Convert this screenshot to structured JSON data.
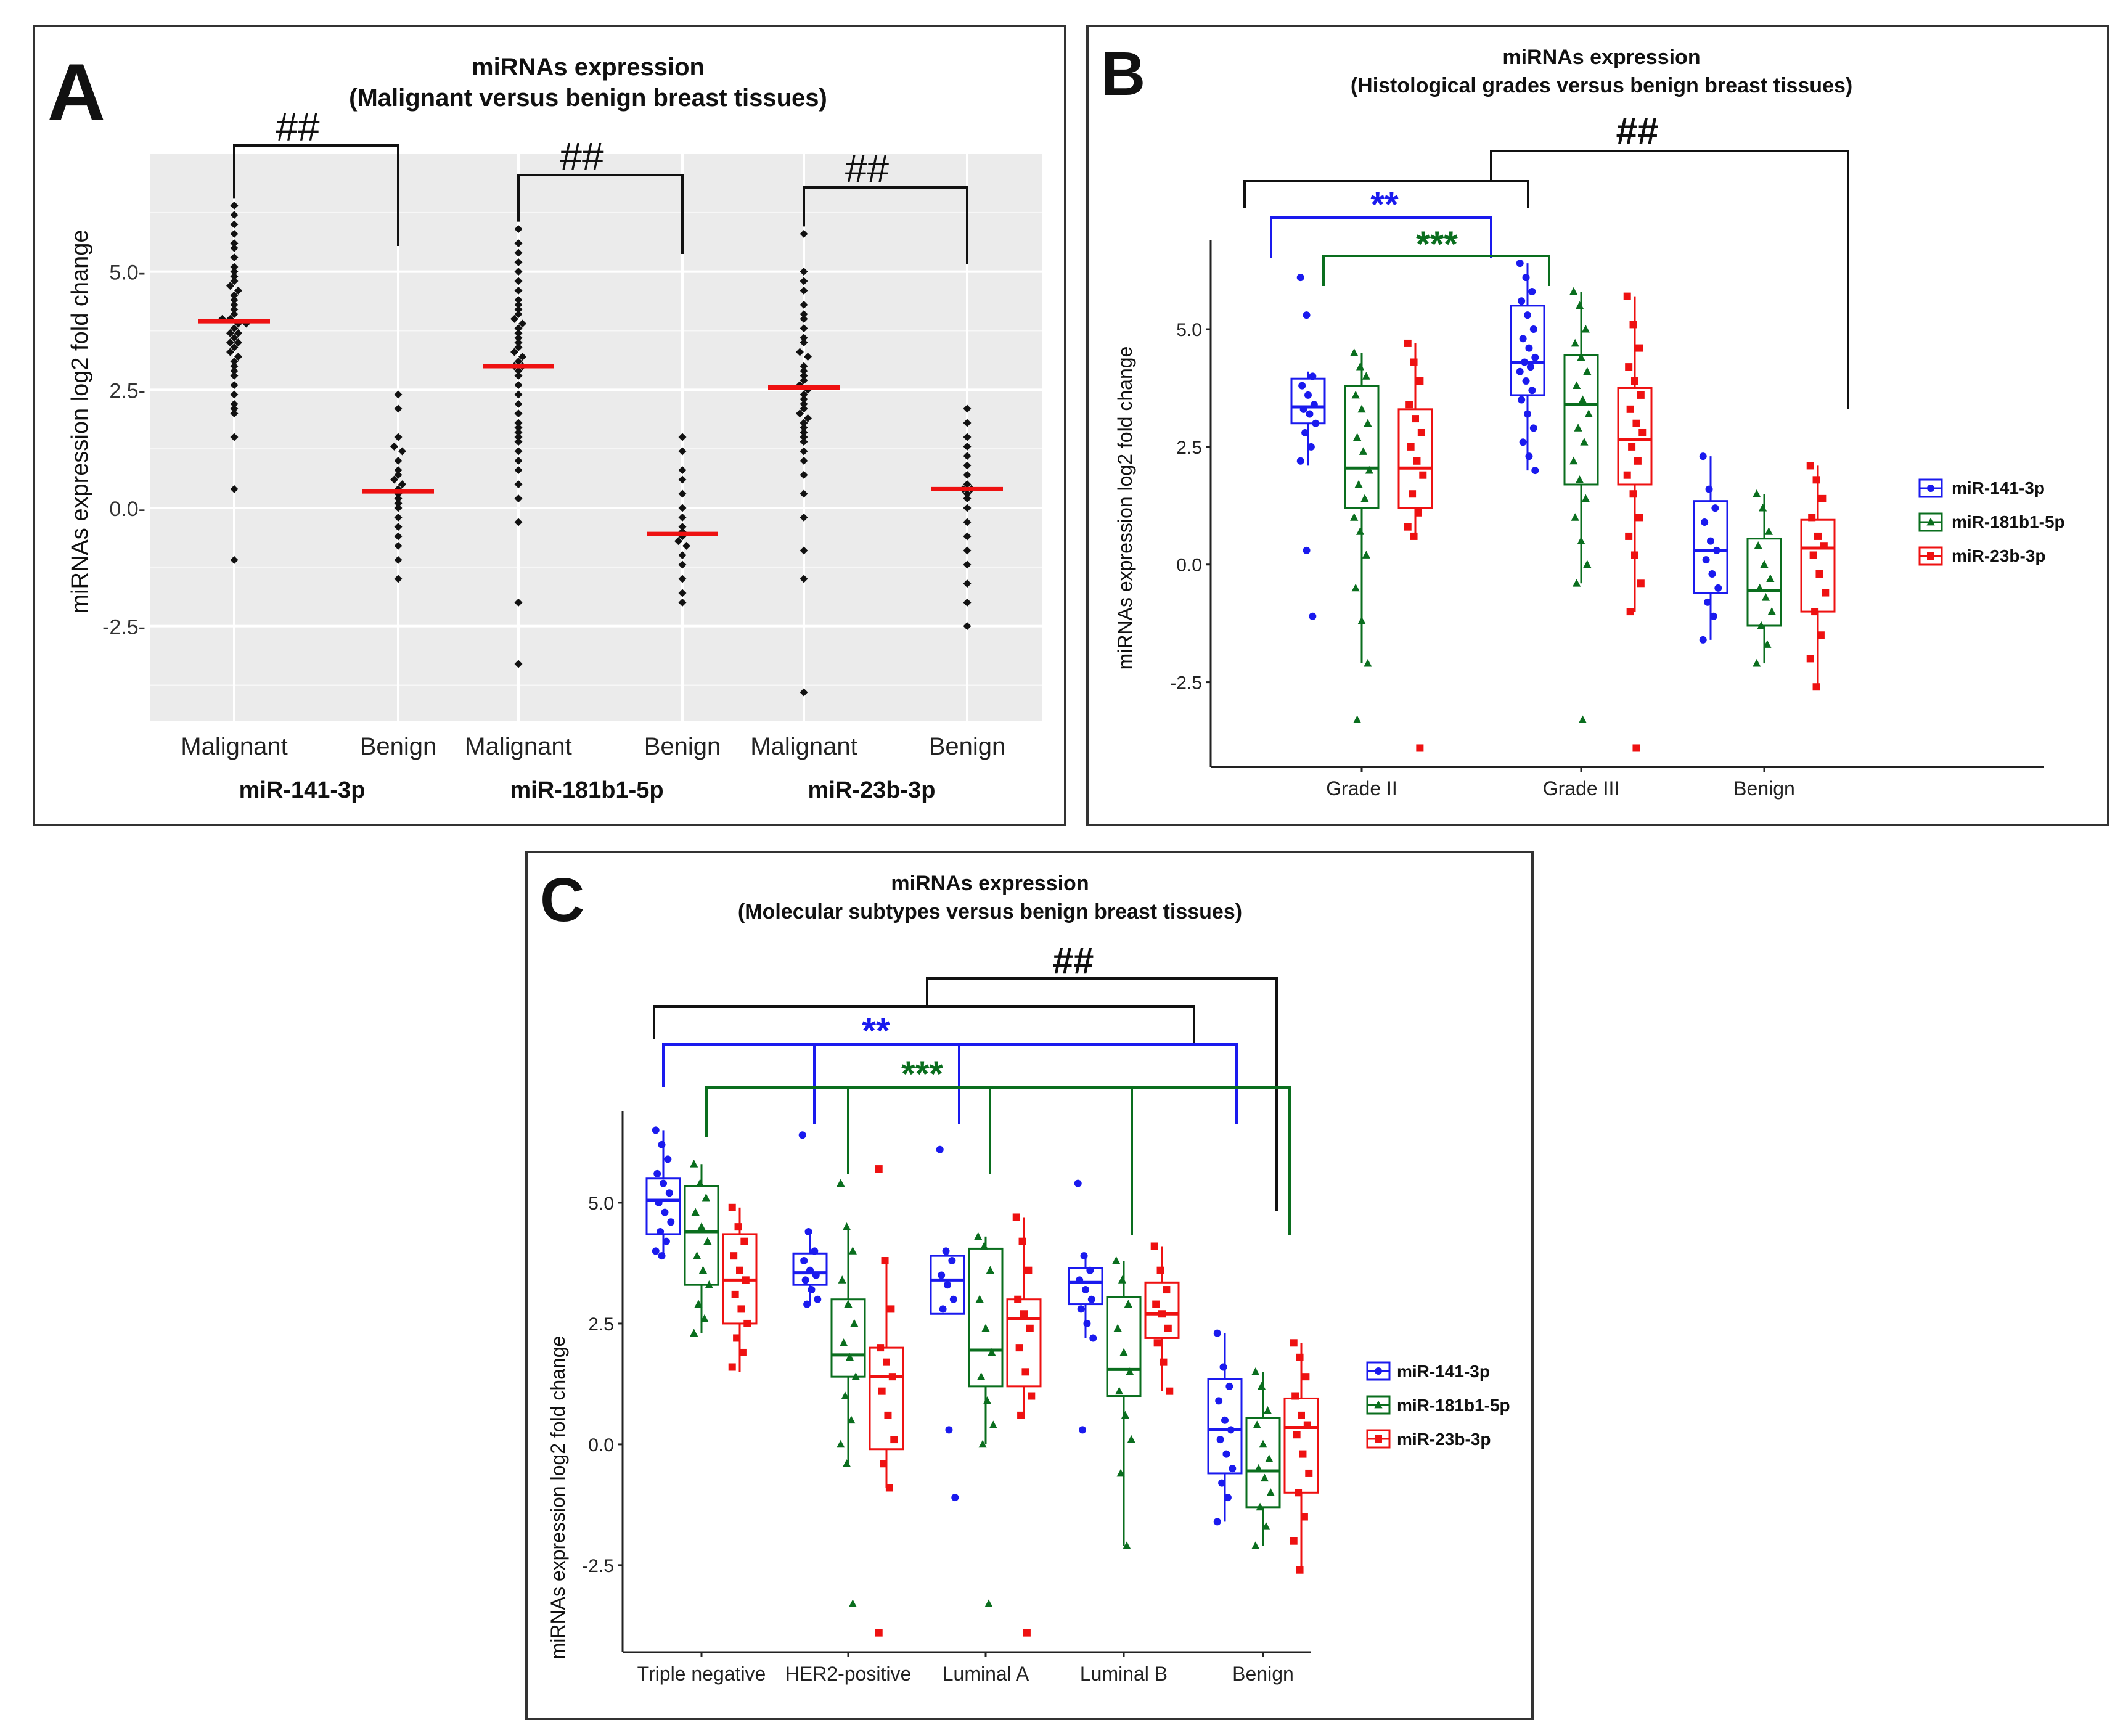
{
  "colors": {
    "blue": "#1a1aee",
    "green": "#0a6e1e",
    "red": "#ee1111",
    "black": "#111111",
    "median_red": "#ee1111",
    "panel_bg": "#ebebeb"
  },
  "chart_data": [
    {
      "type": "scatter",
      "panel_letter": "A",
      "title": "miRNAs expression",
      "subtitle": "(Malignant versus benign breast tissues)",
      "xlabel": "",
      "ylabel": "miRNAs expression log2 fold change",
      "ylim": [
        -4.5,
        7.5
      ],
      "yticks": [
        5.0,
        2.5,
        0.0,
        -2.5
      ],
      "ytick_labels": [
        "5.0-",
        "2.5-",
        "0.0-",
        "-2.5-"
      ],
      "categories": [
        "Malignant",
        "Benign",
        "Malignant",
        "Benign",
        "Malignant",
        "Benign"
      ],
      "groups": [
        "miR-141-3p",
        "miR-181b1-5p",
        "miR-23b-3p"
      ],
      "medians": [
        3.95,
        0.35,
        3.0,
        -0.55,
        2.55,
        0.4
      ],
      "brackets": [
        {
          "from": 0,
          "to": 1,
          "label": "##"
        },
        {
          "from": 2,
          "to": 3,
          "label": "##"
        },
        {
          "from": 4,
          "to": 5,
          "label": "##"
        }
      ],
      "series": [
        {
          "name": "Malignant miR-141-3p",
          "values": [
            6.4,
            6.2,
            6.0,
            5.8,
            5.6,
            5.5,
            5.3,
            5.1,
            5.0,
            4.9,
            4.8,
            4.7,
            4.6,
            4.5,
            4.4,
            4.3,
            4.2,
            4.1,
            4.0,
            4.0,
            3.9,
            3.9,
            3.8,
            3.7,
            3.7,
            3.6,
            3.5,
            3.5,
            3.4,
            3.3,
            3.2,
            3.1,
            3.0,
            2.9,
            2.8,
            2.6,
            2.4,
            2.2,
            2.1,
            2.0,
            1.5,
            0.4,
            -1.1
          ]
        },
        {
          "name": "Benign miR-141-3p",
          "values": [
            2.4,
            2.1,
            1.5,
            1.3,
            1.2,
            1.0,
            0.8,
            0.7,
            0.6,
            0.5,
            0.4,
            0.3,
            0.2,
            0.1,
            0.0,
            -0.2,
            -0.4,
            -0.6,
            -0.8,
            -1.1,
            -1.5
          ]
        },
        {
          "name": "Malignant miR-181b1-5p",
          "values": [
            5.9,
            5.6,
            5.4,
            5.2,
            5.0,
            4.8,
            4.6,
            4.4,
            4.3,
            4.2,
            4.1,
            4.0,
            3.9,
            3.8,
            3.7,
            3.6,
            3.5,
            3.4,
            3.3,
            3.2,
            3.1,
            3.0,
            3.0,
            2.9,
            2.8,
            2.6,
            2.4,
            2.2,
            2.0,
            1.8,
            1.7,
            1.6,
            1.5,
            1.4,
            1.2,
            1.0,
            0.8,
            0.5,
            0.2,
            -0.3,
            -2.0,
            -3.3
          ]
        },
        {
          "name": "Benign miR-181b1-5p",
          "values": [
            1.5,
            1.2,
            0.8,
            0.6,
            0.3,
            0.0,
            -0.2,
            -0.4,
            -0.5,
            -0.6,
            -0.7,
            -0.8,
            -1.0,
            -1.2,
            -1.5,
            -1.8,
            -2.0
          ]
        },
        {
          "name": "Malignant miR-23b-3p",
          "values": [
            5.8,
            5.0,
            4.8,
            4.6,
            4.3,
            4.1,
            4.0,
            3.8,
            3.6,
            3.5,
            3.3,
            3.2,
            3.0,
            2.9,
            2.8,
            2.7,
            2.6,
            2.5,
            2.4,
            2.3,
            2.2,
            2.1,
            2.0,
            1.9,
            1.8,
            1.7,
            1.6,
            1.5,
            1.4,
            1.2,
            1.0,
            0.7,
            0.3,
            -0.2,
            -0.9,
            -1.5,
            -3.9
          ]
        },
        {
          "name": "Benign miR-23b-3p",
          "values": [
            2.1,
            1.8,
            1.5,
            1.3,
            1.1,
            0.9,
            0.7,
            0.5,
            0.4,
            0.4,
            0.3,
            0.2,
            0.0,
            -0.3,
            -0.6,
            -0.9,
            -1.2,
            -1.6,
            -2.0,
            -2.5
          ]
        }
      ]
    },
    {
      "type": "box",
      "panel_letter": "B",
      "title": "miRNAs expression",
      "subtitle": "(Histological grades versus benign breast tissues)",
      "ylabel": "miRNAs expression log2 fold change",
      "ylim": [
        -4.3,
        6.9
      ],
      "yticks": [
        5.0,
        2.5,
        0.0,
        -2.5
      ],
      "ytick_labels": [
        "5.0",
        "2.5",
        "0.0",
        "-2.5"
      ],
      "categories": [
        "Grade II",
        "Grade III",
        "Benign"
      ],
      "legend": [
        {
          "name": "miR-141-3p",
          "color": "#1a1aee"
        },
        {
          "name": "miR-181b1-5p",
          "color": "#0a6e1e"
        },
        {
          "name": "miR-23b-3p",
          "color": "#ee1111"
        }
      ],
      "brackets": [
        {
          "label": "##",
          "color": "#111111"
        },
        {
          "label": "**",
          "color": "#1a1aee"
        },
        {
          "label": "***",
          "color": "#0a6e1e"
        }
      ],
      "boxes": [
        {
          "category": "Grade II",
          "series": "miR-141-3p",
          "q1": 3.0,
          "median": 3.35,
          "q3": 3.95,
          "min": 2.1,
          "max": 4.1,
          "points": [
            6.1,
            5.3,
            4.0,
            3.8,
            3.6,
            3.4,
            3.3,
            3.2,
            3.0,
            2.8,
            2.5,
            2.2,
            0.3,
            -1.1
          ]
        },
        {
          "category": "Grade II",
          "series": "miR-181b1-5p",
          "q1": 1.2,
          "median": 2.05,
          "q3": 3.8,
          "min": -2.1,
          "max": 4.5,
          "points": [
            4.5,
            4.2,
            4.0,
            3.6,
            3.3,
            3.0,
            2.7,
            2.4,
            2.0,
            1.7,
            1.4,
            1.0,
            0.7,
            0.2,
            -0.5,
            -1.2,
            -2.1,
            -3.3
          ]
        },
        {
          "category": "Grade II",
          "series": "miR-23b-3p",
          "q1": 1.2,
          "median": 2.05,
          "q3": 3.3,
          "min": 0.6,
          "max": 4.7,
          "points": [
            4.7,
            4.3,
            3.9,
            3.4,
            3.1,
            2.8,
            2.5,
            2.2,
            1.9,
            1.5,
            1.1,
            0.8,
            0.6,
            -3.9
          ]
        },
        {
          "category": "Grade III",
          "series": "miR-141-3p",
          "q1": 3.6,
          "median": 4.3,
          "q3": 5.5,
          "min": 2.0,
          "max": 6.4,
          "points": [
            6.4,
            6.1,
            5.8,
            5.6,
            5.3,
            5.0,
            4.8,
            4.6,
            4.4,
            4.3,
            4.2,
            4.1,
            3.9,
            3.7,
            3.5,
            3.2,
            2.9,
            2.6,
            2.3,
            2.0
          ]
        },
        {
          "category": "Grade III",
          "series": "miR-181b1-5p",
          "q1": 1.7,
          "median": 3.4,
          "q3": 4.45,
          "min": -0.4,
          "max": 5.8,
          "points": [
            5.8,
            5.5,
            5.0,
            4.7,
            4.4,
            4.1,
            3.8,
            3.5,
            3.2,
            2.9,
            2.6,
            2.2,
            1.8,
            1.4,
            1.0,
            0.5,
            0.0,
            -0.4,
            -3.3
          ]
        },
        {
          "category": "Grade III",
          "series": "miR-23b-3p",
          "q1": 1.7,
          "median": 2.65,
          "q3": 3.75,
          "min": -1.0,
          "max": 5.7,
          "points": [
            5.7,
            5.1,
            4.6,
            4.2,
            3.9,
            3.6,
            3.3,
            3.0,
            2.8,
            2.5,
            2.2,
            1.9,
            1.5,
            1.0,
            0.6,
            0.2,
            -0.4,
            -1.0,
            -3.9
          ]
        },
        {
          "category": "Benign",
          "series": "miR-141-3p",
          "q1": -0.6,
          "median": 0.3,
          "q3": 1.35,
          "min": -1.6,
          "max": 2.3,
          "points": [
            2.3,
            1.6,
            1.2,
            0.9,
            0.5,
            0.3,
            0.1,
            -0.2,
            -0.5,
            -0.8,
            -1.1,
            -1.6
          ]
        },
        {
          "category": "Benign",
          "series": "miR-181b1-5p",
          "q1": -1.3,
          "median": -0.55,
          "q3": 0.55,
          "min": -2.1,
          "max": 1.5,
          "points": [
            1.5,
            1.2,
            0.7,
            0.4,
            0.0,
            -0.3,
            -0.5,
            -0.7,
            -1.0,
            -1.3,
            -1.7,
            -2.1
          ]
        },
        {
          "category": "Benign",
          "series": "miR-23b-3p",
          "q1": -1.0,
          "median": 0.35,
          "q3": 0.95,
          "min": -2.6,
          "max": 2.1,
          "points": [
            2.1,
            1.8,
            1.4,
            1.0,
            0.6,
            0.4,
            0.2,
            -0.2,
            -0.6,
            -1.0,
            -1.5,
            -2.0,
            -2.6
          ]
        }
      ]
    },
    {
      "type": "box",
      "panel_letter": "C",
      "title": "miRNAs expression",
      "subtitle": "(Molecular subtypes versus benign breast tissues)",
      "ylabel": "miRNAs expression log2 fold change",
      "ylim": [
        -4.3,
        6.9
      ],
      "yticks": [
        5.0,
        2.5,
        0.0,
        -2.5
      ],
      "ytick_labels": [
        "5.0",
        "2.5",
        "0.0",
        "-2.5"
      ],
      "categories": [
        "Triple negative",
        "HER2-positive",
        "Luminal A",
        "Luminal B",
        "Benign"
      ],
      "legend": [
        {
          "name": "miR-141-3p",
          "color": "#1a1aee"
        },
        {
          "name": "miR-181b1-5p",
          "color": "#0a6e1e"
        },
        {
          "name": "miR-23b-3p",
          "color": "#ee1111"
        }
      ],
      "brackets": [
        {
          "label": "##",
          "color": "#111111"
        },
        {
          "label": "**",
          "color": "#1a1aee"
        },
        {
          "label": "***",
          "color": "#0a6e1e"
        }
      ],
      "boxes": [
        {
          "category": "Triple negative",
          "series": "miR-141-3p",
          "q1": 4.35,
          "median": 5.05,
          "q3": 5.5,
          "min": 3.9,
          "max": 6.5,
          "points": [
            6.5,
            6.2,
            5.9,
            5.6,
            5.4,
            5.2,
            5.0,
            4.8,
            4.6,
            4.4,
            4.2,
            4.0,
            3.9
          ]
        },
        {
          "category": "Triple negative",
          "series": "miR-181b1-5p",
          "q1": 3.3,
          "median": 4.4,
          "q3": 5.35,
          "min": 2.3,
          "max": 5.8,
          "points": [
            5.8,
            5.4,
            5.1,
            4.8,
            4.5,
            4.2,
            3.9,
            3.6,
            3.3,
            2.9,
            2.6,
            2.3
          ]
        },
        {
          "category": "Triple negative",
          "series": "miR-23b-3p",
          "q1": 2.5,
          "median": 3.4,
          "q3": 4.35,
          "min": 1.5,
          "max": 4.9,
          "points": [
            4.9,
            4.5,
            4.2,
            3.9,
            3.6,
            3.4,
            3.1,
            2.8,
            2.5,
            2.2,
            1.9,
            1.6
          ]
        },
        {
          "category": "HER2-positive",
          "series": "miR-141-3p",
          "q1": 3.3,
          "median": 3.55,
          "q3": 3.95,
          "min": 2.9,
          "max": 4.4,
          "points": [
            6.4,
            4.4,
            4.0,
            3.8,
            3.6,
            3.5,
            3.4,
            3.2,
            3.0,
            2.9
          ]
        },
        {
          "category": "HER2-positive",
          "series": "miR-181b1-5p",
          "q1": 1.4,
          "median": 1.85,
          "q3": 3.0,
          "min": -0.4,
          "max": 4.5,
          "points": [
            5.4,
            4.5,
            4.0,
            3.4,
            2.9,
            2.5,
            2.1,
            1.8,
            1.4,
            1.0,
            0.5,
            0.0,
            -0.4,
            -3.3
          ]
        },
        {
          "category": "HER2-positive",
          "series": "miR-23b-3p",
          "q1": -0.1,
          "median": 1.4,
          "q3": 2.0,
          "min": -0.9,
          "max": 3.8,
          "points": [
            5.7,
            3.8,
            2.8,
            2.0,
            1.7,
            1.4,
            1.1,
            0.6,
            0.1,
            -0.4,
            -0.9,
            -3.9
          ]
        },
        {
          "category": "Luminal A",
          "series": "miR-141-3p",
          "q1": 2.7,
          "median": 3.4,
          "q3": 3.9,
          "min": 2.7,
          "max": 4.0,
          "points": [
            6.1,
            4.0,
            3.8,
            3.5,
            3.3,
            3.0,
            2.8,
            0.3,
            -1.1
          ]
        },
        {
          "category": "Luminal A",
          "series": "miR-181b1-5p",
          "q1": 1.2,
          "median": 1.95,
          "q3": 4.05,
          "min": 0.0,
          "max": 4.3,
          "points": [
            4.3,
            4.1,
            3.6,
            3.0,
            2.4,
            1.9,
            1.4,
            0.9,
            0.4,
            0.0,
            -3.3
          ]
        },
        {
          "category": "Luminal A",
          "series": "miR-23b-3p",
          "q1": 1.2,
          "median": 2.6,
          "q3": 3.0,
          "min": 0.6,
          "max": 4.7,
          "points": [
            4.7,
            4.2,
            3.6,
            3.0,
            2.7,
            2.4,
            2.0,
            1.5,
            1.0,
            0.6,
            -3.9
          ]
        },
        {
          "category": "Luminal B",
          "series": "miR-141-3p",
          "q1": 2.9,
          "median": 3.35,
          "q3": 3.65,
          "min": 2.2,
          "max": 3.9,
          "points": [
            5.4,
            3.9,
            3.6,
            3.4,
            3.2,
            3.0,
            2.8,
            2.5,
            2.2,
            0.3
          ]
        },
        {
          "category": "Luminal B",
          "series": "miR-181b1-5p",
          "q1": 1.0,
          "median": 1.55,
          "q3": 3.05,
          "min": -2.1,
          "max": 3.8,
          "points": [
            3.8,
            3.4,
            2.9,
            2.4,
            1.9,
            1.5,
            1.1,
            0.6,
            0.1,
            -0.6,
            -2.1
          ]
        },
        {
          "category": "Luminal B",
          "series": "miR-23b-3p",
          "q1": 2.2,
          "median": 2.7,
          "q3": 3.35,
          "min": 1.1,
          "max": 4.1,
          "points": [
            4.1,
            3.6,
            3.2,
            2.9,
            2.7,
            2.4,
            2.1,
            1.7,
            1.1
          ]
        },
        {
          "category": "Benign",
          "series": "miR-141-3p",
          "q1": -0.6,
          "median": 0.3,
          "q3": 1.35,
          "min": -1.6,
          "max": 2.3,
          "points": [
            2.3,
            1.6,
            1.2,
            0.9,
            0.5,
            0.3,
            0.1,
            -0.2,
            -0.5,
            -0.8,
            -1.1,
            -1.6
          ]
        },
        {
          "category": "Benign",
          "series": "miR-181b1-5p",
          "q1": -1.3,
          "median": -0.55,
          "q3": 0.55,
          "min": -2.1,
          "max": 1.5,
          "points": [
            1.5,
            1.2,
            0.7,
            0.4,
            0.0,
            -0.3,
            -0.5,
            -0.7,
            -1.0,
            -1.3,
            -1.7,
            -2.1
          ]
        },
        {
          "category": "Benign",
          "series": "miR-23b-3p",
          "q1": -1.0,
          "median": 0.35,
          "q3": 0.95,
          "min": -2.6,
          "max": 2.1,
          "points": [
            2.1,
            1.8,
            1.4,
            1.0,
            0.6,
            0.4,
            0.2,
            -0.2,
            -0.6,
            -1.0,
            -1.5,
            -2.0,
            -2.6
          ]
        }
      ]
    }
  ]
}
